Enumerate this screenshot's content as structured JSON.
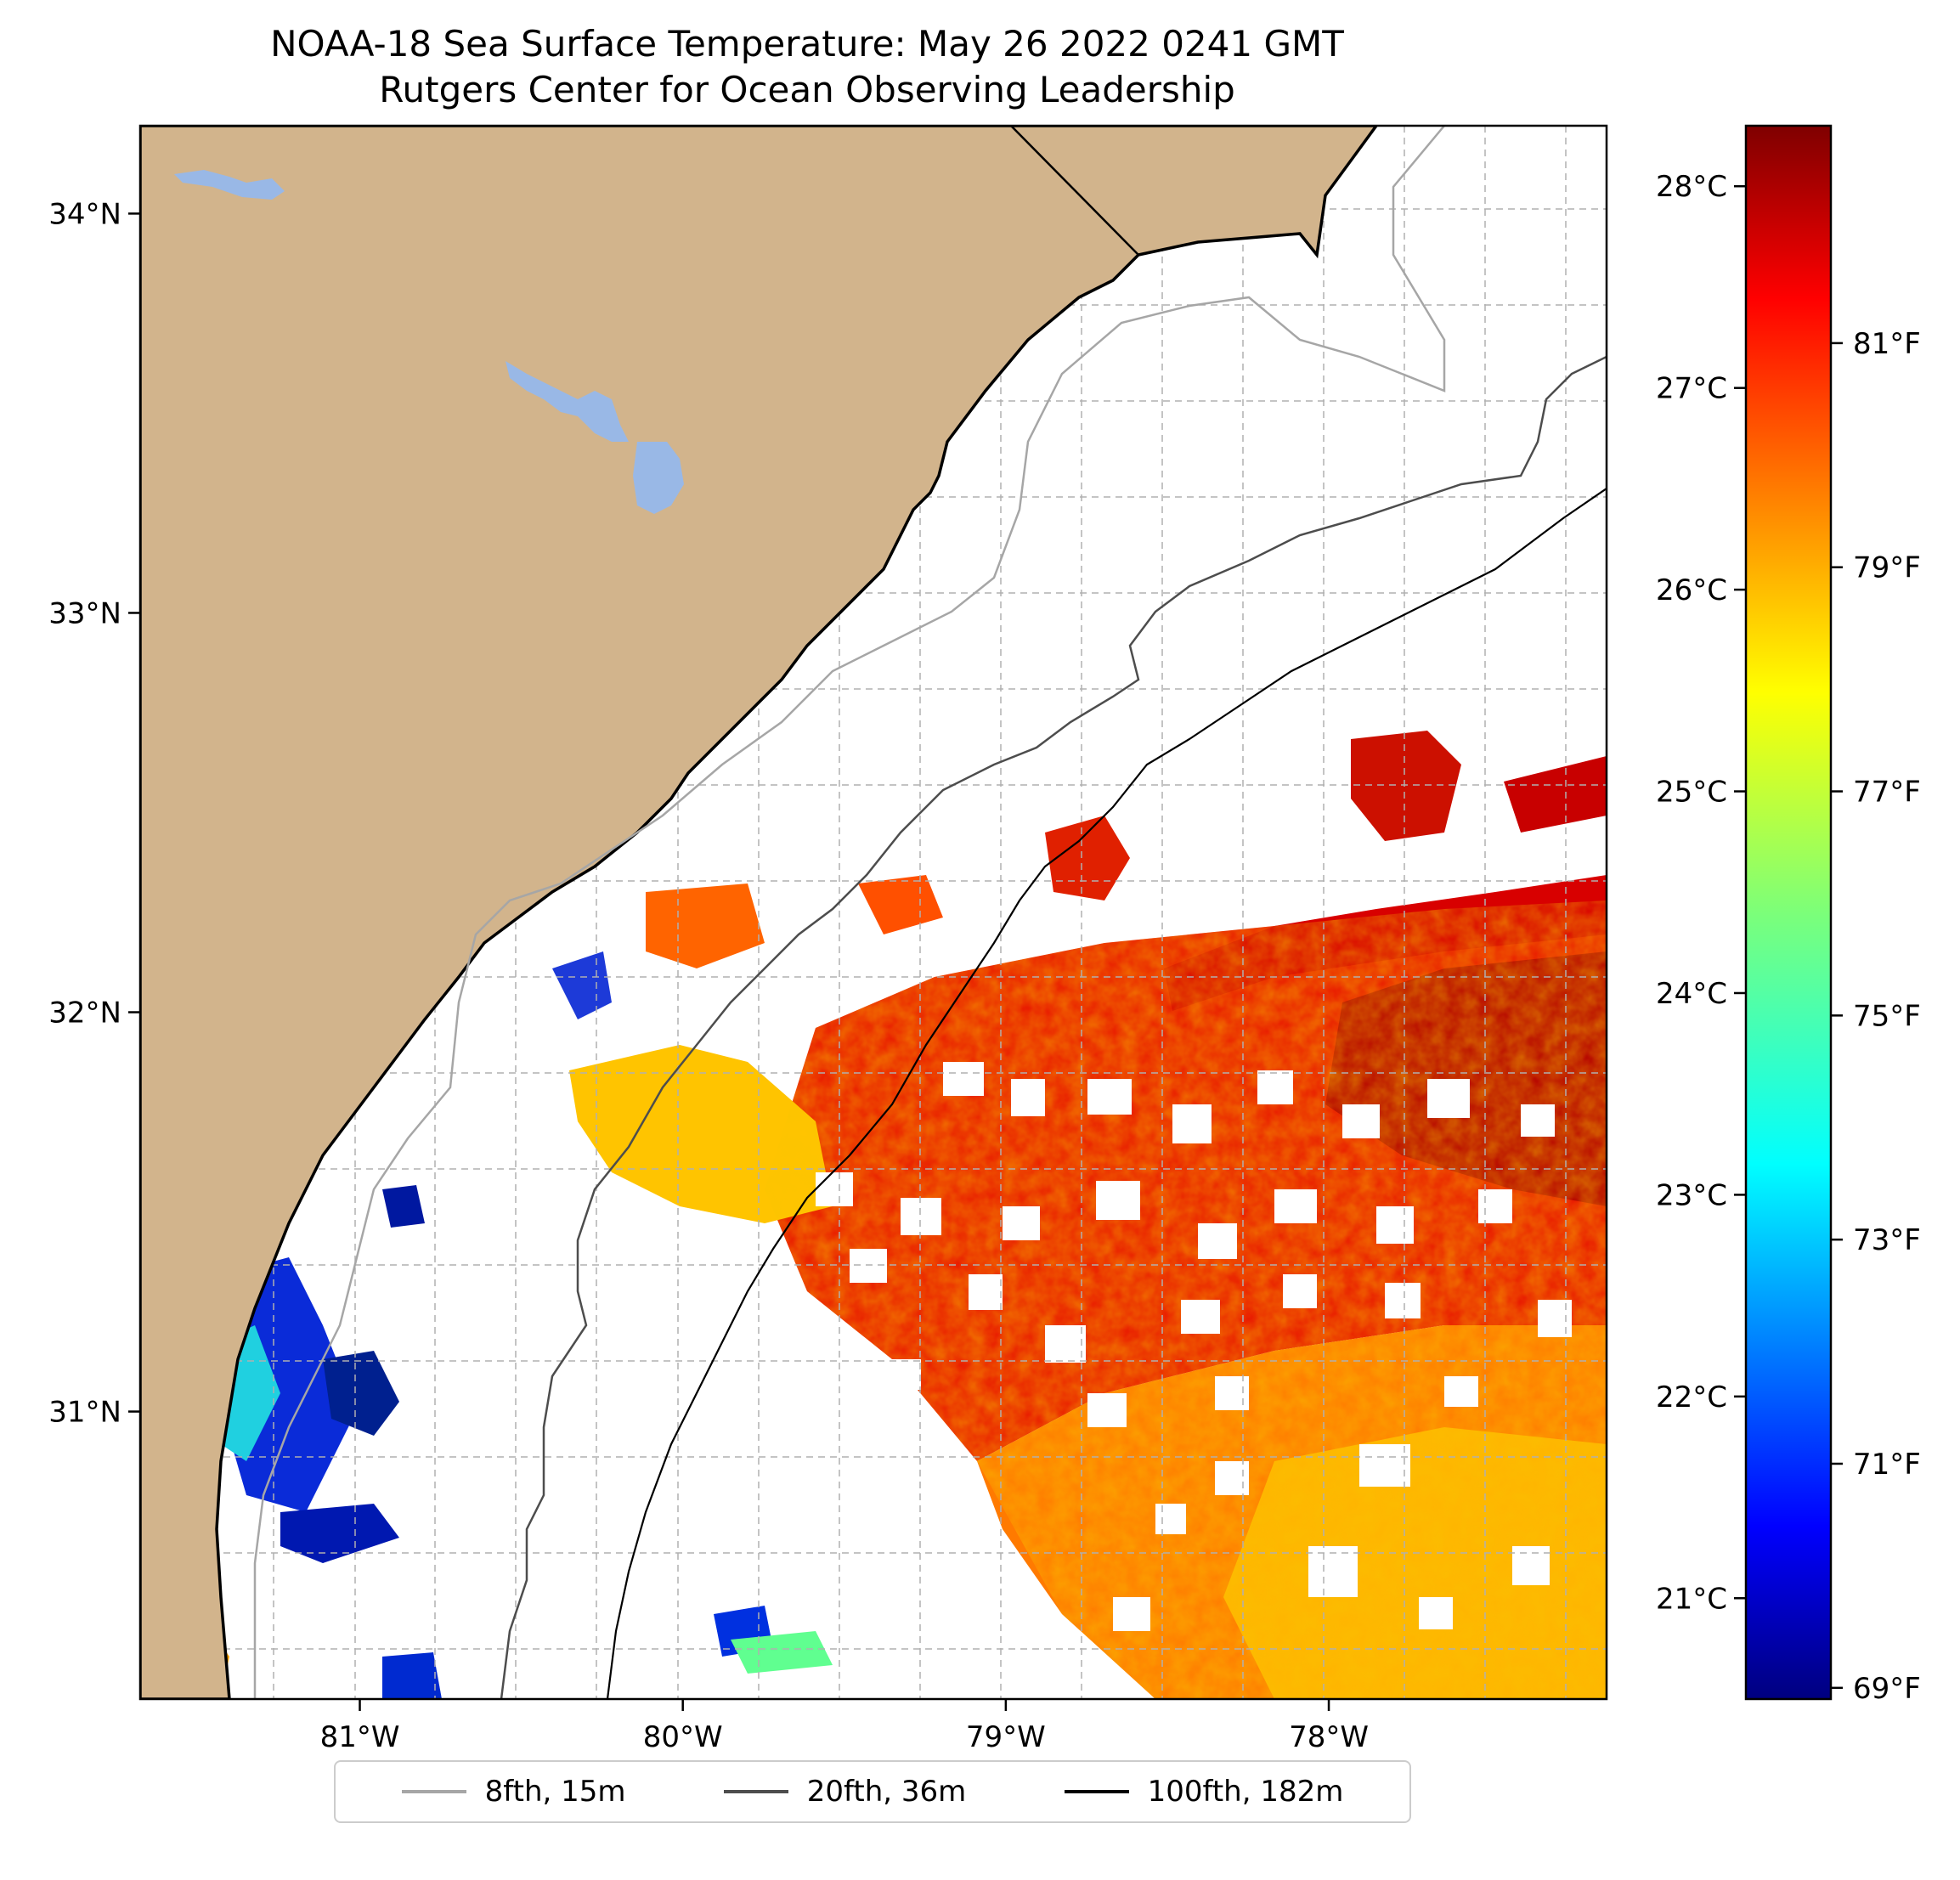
{
  "title": "NOAA-18 Sea Surface Temperature: May 26 2022 0241 GMT",
  "subtitle": "Rutgers Center for Ocean Observing Leadership",
  "colors": {
    "land": "#d2b48c",
    "lake": "#99b8e6",
    "coast": "#000000",
    "iso_8fth": "#a6a6a6",
    "iso_20fth": "#4d4d4d",
    "iso_100fth": "#000000",
    "grid": "#b0b0b0"
  },
  "map": {
    "lon_range": [
      -81.68,
      -77.14
    ],
    "lat_range": [
      30.28,
      34.22
    ],
    "lon_ticks": [
      {
        "value": -81,
        "label": "81°W"
      },
      {
        "value": -80,
        "label": "80°W"
      },
      {
        "value": -79,
        "label": "79°W"
      },
      {
        "value": -78,
        "label": "78°W"
      }
    ],
    "lat_ticks": [
      {
        "value": 31,
        "label": "31°N"
      },
      {
        "value": 32,
        "label": "32°N"
      },
      {
        "value": 33,
        "label": "33°N"
      },
      {
        "value": 34,
        "label": "34°N"
      }
    ]
  },
  "colorbar": {
    "colormap": "jet",
    "celsius_range": [
      20.5,
      28.3
    ],
    "c_ticks": [
      {
        "value": 21,
        "label": "21°C"
      },
      {
        "value": 22,
        "label": "22°C"
      },
      {
        "value": 23,
        "label": "23°C"
      },
      {
        "value": 24,
        "label": "24°C"
      },
      {
        "value": 25,
        "label": "25°C"
      },
      {
        "value": 26,
        "label": "26°C"
      },
      {
        "value": 27,
        "label": "27°C"
      },
      {
        "value": 28,
        "label": "28°C"
      }
    ],
    "f_ticks": [
      {
        "value": 69,
        "label": "69°F"
      },
      {
        "value": 71,
        "label": "71°F"
      },
      {
        "value": 73,
        "label": "73°F"
      },
      {
        "value": 75,
        "label": "75°F"
      },
      {
        "value": 77,
        "label": "77°F"
      },
      {
        "value": 79,
        "label": "79°F"
      },
      {
        "value": 81,
        "label": "81°F"
      }
    ]
  },
  "legend": [
    {
      "label": "8fth, 15m",
      "color": "#a6a6a6"
    },
    {
      "label": "20fth, 36m",
      "color": "#4d4d4d"
    },
    {
      "label": "100fth, 182m",
      "color": "#000000"
    }
  ]
}
